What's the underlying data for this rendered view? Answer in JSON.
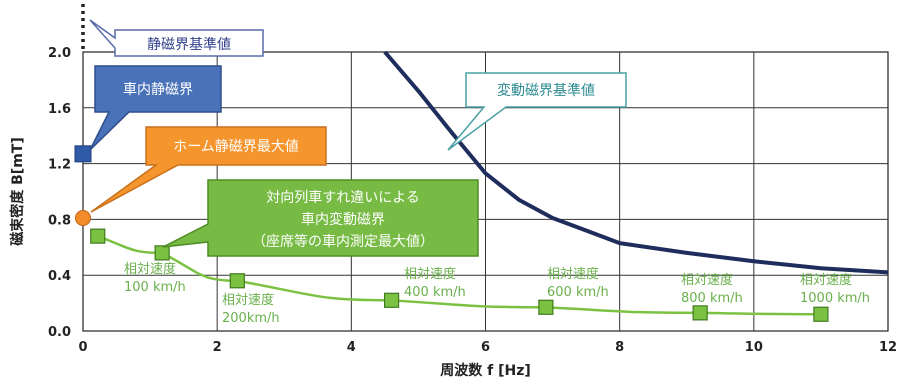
{
  "chart_data": {
    "type": "line",
    "xlabel": "周波数 f [Hz]",
    "ylabel": "磁束密度 B[mT]",
    "xlim": [
      0,
      12
    ],
    "ylim": [
      0,
      2.0
    ],
    "x_ticks": [
      "0",
      "2",
      "4",
      "6",
      "8",
      "10",
      "12"
    ],
    "y_ticks": [
      "0.0",
      "0.4",
      "0.8",
      "1.2",
      "1.6",
      "2.0"
    ],
    "grid": true,
    "colors": {
      "reference_curve": "#1f2d5c",
      "measured": "#7cc242",
      "marker_fill": "#7cc242",
      "marker_edge": "#3f7a1f",
      "static_field": "#2e5aa8",
      "platform_max": "#f28c28"
    },
    "series": [
      {
        "name": "変動磁界基準値",
        "x": [
          4.5,
          5.0,
          5.5,
          6.0,
          6.5,
          7.0,
          7.5,
          8.0,
          9.0,
          10.0,
          11.0,
          12.0
        ],
        "y": [
          2.0,
          1.72,
          1.42,
          1.13,
          0.94,
          0.81,
          0.72,
          0.63,
          0.56,
          0.5,
          0.45,
          0.42
        ]
      },
      {
        "name": "対向列車すれ違いによる車内変動磁界",
        "x": [
          0.22,
          1.18,
          2.3,
          4.6,
          6.9,
          9.2,
          11.0
        ],
        "y": [
          0.68,
          0.56,
          0.36,
          0.22,
          0.17,
          0.13,
          0.12
        ]
      }
    ],
    "points": [
      {
        "name": "車内静磁界",
        "x": 0,
        "y": 1.27
      },
      {
        "name": "ホーム静磁界最大値",
        "x": 0,
        "y": 0.81
      }
    ],
    "callouts": [
      {
        "name": "static-standard",
        "lines": [
          "静磁界基準値"
        ]
      },
      {
        "name": "in-car-static",
        "lines": [
          "車内静磁界"
        ]
      },
      {
        "name": "platform-max",
        "lines": [
          "ホーム静磁界最大値"
        ]
      },
      {
        "name": "variable-standard",
        "lines": [
          "変動磁界基準値"
        ]
      },
      {
        "name": "passing-train",
        "lines": [
          "対向列車すれ違いによる",
          "車内変動磁界",
          "（座席等の車内測定最大値）"
        ]
      }
    ],
    "speed_labels": [
      {
        "lines": [
          "相対速度",
          "100 km/h"
        ]
      },
      {
        "lines": [
          "相対速度",
          "200km/h"
        ]
      },
      {
        "lines": [
          "相対速度",
          "400 km/h"
        ]
      },
      {
        "lines": [
          "相対速度",
          "600 km/h"
        ]
      },
      {
        "lines": [
          "相対速度",
          "800 km/h"
        ]
      },
      {
        "lines": [
          "相対速度",
          "1000 km/h"
        ]
      }
    ]
  }
}
